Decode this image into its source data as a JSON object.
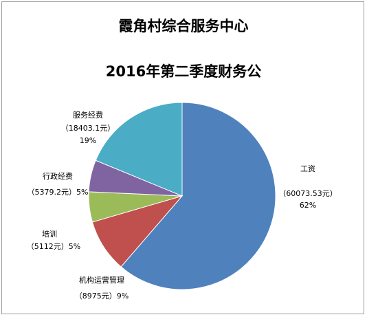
{
  "chart_data": {
    "type": "pie",
    "title": "霞角村综合服务中心",
    "subtitle": "2016年第二季度财务公",
    "slices": [
      {
        "name": "工资",
        "amount_text": "（60073.53元）",
        "percent_text": "62%",
        "value": 60073.53,
        "color": "#4f81bd"
      },
      {
        "name": "机构运营管理",
        "amount_text": "（8975元）9%",
        "percent_text": "",
        "value": 8975,
        "color": "#c0504d"
      },
      {
        "name": "培训",
        "amount_text": "（5112元）5%",
        "percent_text": "",
        "value": 5112,
        "color": "#9bbb59"
      },
      {
        "name": "行政经费",
        "amount_text": "（5379.2元）5%",
        "percent_text": "",
        "value": 5379.2,
        "color": "#8064a2"
      },
      {
        "name": "服务经费",
        "amount_text": "（18403.1元）",
        "percent_text": "19%",
        "value": 18403.1,
        "color": "#4bacc6"
      }
    ]
  }
}
